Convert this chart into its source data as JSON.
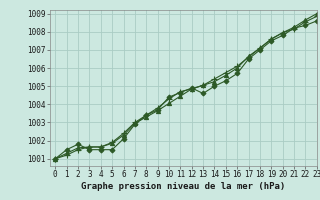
{
  "title": "Graphe pression niveau de la mer (hPa)",
  "background_color": "#cce8e0",
  "grid_color": "#aaccc4",
  "line_color": "#2d5a27",
  "xlim": [
    -0.5,
    23
  ],
  "ylim": [
    1000.6,
    1009.2
  ],
  "xticks": [
    0,
    1,
    2,
    3,
    4,
    5,
    6,
    7,
    8,
    9,
    10,
    11,
    12,
    13,
    14,
    15,
    16,
    17,
    18,
    19,
    20,
    21,
    22,
    23
  ],
  "yticks": [
    1001,
    1002,
    1003,
    1004,
    1005,
    1006,
    1007,
    1008,
    1009
  ],
  "series": [
    [
      1001.0,
      1001.5,
      1001.8,
      1001.5,
      1001.5,
      1001.5,
      1002.1,
      1002.9,
      1003.4,
      1003.7,
      1004.4,
      1004.65,
      1004.9,
      1004.6,
      1005.0,
      1005.3,
      1005.7,
      1006.5,
      1007.0,
      1007.5,
      1007.8,
      1008.2,
      1008.35,
      1008.6
    ],
    [
      1001.0,
      1001.2,
      1001.5,
      1001.65,
      1001.65,
      1001.9,
      1002.4,
      1003.0,
      1003.4,
      1003.8,
      1004.3,
      1004.7,
      1004.85,
      1005.05,
      1005.4,
      1005.75,
      1006.1,
      1006.6,
      1007.1,
      1007.6,
      1007.95,
      1008.15,
      1008.55,
      1008.85
    ],
    [
      1001.0,
      1001.3,
      1001.6,
      1001.65,
      1001.65,
      1001.85,
      1002.3,
      1002.95,
      1003.3,
      1003.65,
      1004.05,
      1004.45,
      1004.85,
      1005.05,
      1005.25,
      1005.6,
      1006.0,
      1006.65,
      1007.1,
      1007.6,
      1007.95,
      1008.25,
      1008.65,
      1009.0
    ]
  ],
  "marker_styles": [
    "D",
    "+",
    "^"
  ],
  "marker_sizes": [
    2.5,
    5,
    3
  ],
  "linewidths": [
    0.8,
    0.8,
    0.8
  ],
  "title_fontsize": 6.5,
  "tick_fontsize": 5.5
}
